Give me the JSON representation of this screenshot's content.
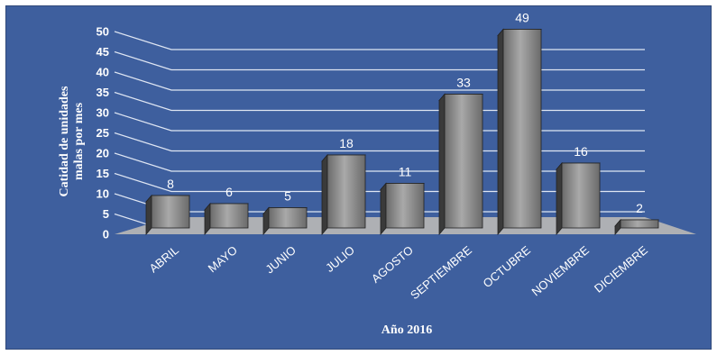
{
  "chart_data": {
    "type": "bar",
    "title": "",
    "xlabel": "Año 2016",
    "ylabel_lines": [
      "Catidad de unidades",
      "malas por mes"
    ],
    "categories": [
      "ABRIL",
      "MAYO",
      "JUNIO",
      "JULIO",
      "AGOSTO",
      "SEPTIEMBRE",
      "OCTUBRE",
      "NOVIEMBRE",
      "DICIEMBRE"
    ],
    "values": [
      8,
      6,
      5,
      18,
      11,
      33,
      49,
      16,
      2
    ],
    "value_labels": [
      "8",
      "6",
      "5",
      "18",
      "11",
      "33",
      "49",
      "16",
      "2"
    ],
    "ylim": [
      0,
      50
    ],
    "yticks": [
      0,
      5,
      10,
      15,
      20,
      25,
      30,
      35,
      40,
      45,
      50
    ],
    "grid": true,
    "style": "3d-column"
  },
  "colors": {
    "background": "#3e5f9e",
    "gridline": "#dfe6f3",
    "floor": "#aeb0b4",
    "bar_front_light": "#a9a9a9",
    "bar_front_dark": "#6a6a6a",
    "bar_side": "#3a3a3a",
    "bar_top": "#8f8f8f",
    "text": "#ffffff"
  }
}
